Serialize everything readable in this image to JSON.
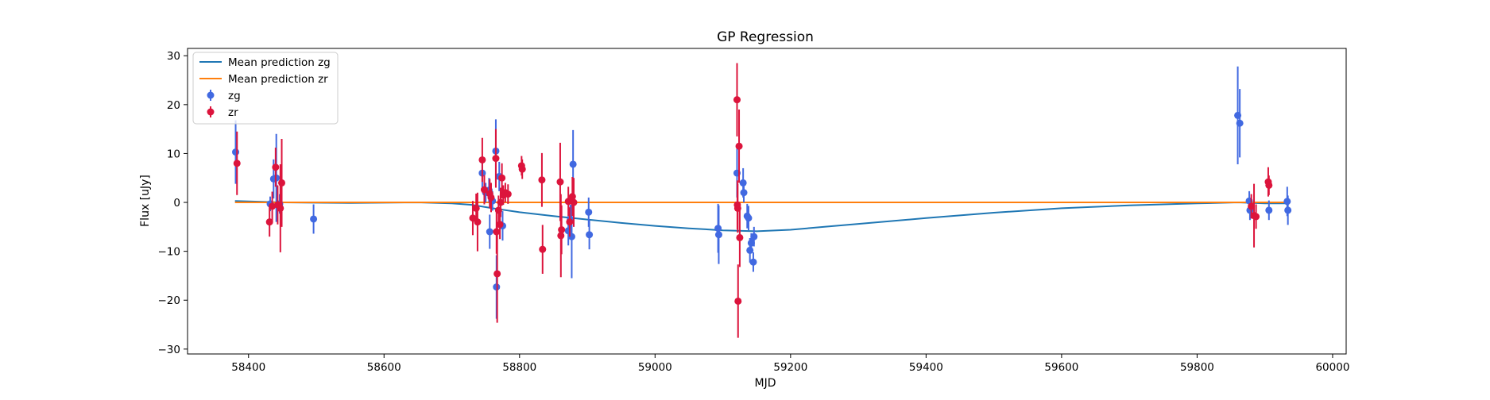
{
  "chart_data": {
    "type": "scatter",
    "title": "GP Regression",
    "xlabel": "MJD",
    "ylabel": "Flux [uJy]",
    "xlim": [
      58310,
      60020
    ],
    "ylim": [
      -31,
      31.5
    ],
    "xticks": [
      58400,
      58600,
      58800,
      59000,
      59200,
      59400,
      59600,
      59800,
      60000
    ],
    "yticks": [
      -30,
      -20,
      -10,
      0,
      10,
      20,
      30
    ],
    "grid": false,
    "legend_position": "top-left",
    "colors": {
      "zg": "#4169E1",
      "zr": "#DC143C",
      "mean_zg": "#1f77b4",
      "mean_zr": "#ff7f0e"
    },
    "legend": [
      {
        "label": "Mean prediction zg",
        "kind": "line",
        "color": "#1f77b4"
      },
      {
        "label": "Mean prediction zr",
        "kind": "line",
        "color": "#ff7f0e"
      },
      {
        "label": "zg",
        "kind": "errorbar",
        "color": "#4169E1"
      },
      {
        "label": "zr",
        "kind": "errorbar",
        "color": "#DC143C"
      }
    ],
    "lines": [
      {
        "name": "Mean prediction zg",
        "color": "#1f77b4",
        "x": [
          58380,
          58450,
          58550,
          58650,
          58700,
          58730,
          58760,
          58800,
          58850,
          58900,
          58950,
          59000,
          59050,
          59100,
          59150,
          59200,
          59250,
          59300,
          59400,
          59500,
          59600,
          59700,
          59800,
          59860,
          59900,
          59935
        ],
        "y": [
          0.3,
          0.0,
          -0.1,
          0.0,
          -0.2,
          -0.5,
          -1.2,
          -2.0,
          -2.8,
          -3.5,
          -4.2,
          -4.8,
          -5.3,
          -5.7,
          -5.9,
          -5.6,
          -5.0,
          -4.4,
          -3.2,
          -2.1,
          -1.2,
          -0.6,
          -0.2,
          0.0,
          -0.2,
          -0.2
        ]
      },
      {
        "name": "Mean prediction zr",
        "color": "#ff7f0e",
        "x": [
          58380,
          58600,
          58800,
          59000,
          59200,
          59400,
          59600,
          59800,
          59935
        ],
        "y": [
          0.0,
          0.0,
          0.0,
          0.0,
          0.0,
          0.0,
          0.0,
          0.0,
          0.0
        ]
      }
    ],
    "series": [
      {
        "name": "zg",
        "color": "#4169E1",
        "points": [
          {
            "x": 58381,
            "y": 10.3,
            "err": 6.5
          },
          {
            "x": 58432,
            "y": -0.3,
            "err": 1.5
          },
          {
            "x": 58437,
            "y": 4.8,
            "err": 4.0
          },
          {
            "x": 58441,
            "y": 5.0,
            "err": 9.0
          },
          {
            "x": 58446,
            "y": -0.3,
            "err": 2.0
          },
          {
            "x": 58496,
            "y": -3.4,
            "err": 3.0
          },
          {
            "x": 58745,
            "y": 6.0,
            "err": 3.0
          },
          {
            "x": 58750,
            "y": 2.0,
            "err": 2.0
          },
          {
            "x": 58755,
            "y": 2.5,
            "err": 2.5
          },
          {
            "x": 58756,
            "y": -6.0,
            "err": 3.5
          },
          {
            "x": 58760,
            "y": 0.3,
            "err": 2.0
          },
          {
            "x": 58765,
            "y": 10.5,
            "err": 6.5
          },
          {
            "x": 58766,
            "y": -17.3,
            "err": 6.5
          },
          {
            "x": 58770,
            "y": 5.3,
            "err": 3.0
          },
          {
            "x": 58775,
            "y": -4.8,
            "err": 3.0
          },
          {
            "x": 58872,
            "y": -5.8,
            "err": 3.0
          },
          {
            "x": 58875,
            "y": -3.5,
            "err": 3.0
          },
          {
            "x": 58877,
            "y": -7.0,
            "err": 8.5
          },
          {
            "x": 58879,
            "y": 7.8,
            "err": 7.0
          },
          {
            "x": 58902,
            "y": -2.0,
            "err": 3.0
          },
          {
            "x": 58903,
            "y": -6.6,
            "err": 3.0
          },
          {
            "x": 59093,
            "y": -5.3,
            "err": 5.0
          },
          {
            "x": 59094,
            "y": -6.6,
            "err": 6.0
          },
          {
            "x": 59121,
            "y": 6.0,
            "err": 5.0
          },
          {
            "x": 59130,
            "y": 4.0,
            "err": 3.0
          },
          {
            "x": 59131,
            "y": 2.0,
            "err": 2.0
          },
          {
            "x": 59136,
            "y": -2.8,
            "err": 2.5
          },
          {
            "x": 59138,
            "y": -3.2,
            "err": 2.5
          },
          {
            "x": 59140,
            "y": -9.8,
            "err": 2.5
          },
          {
            "x": 59142,
            "y": -8.3,
            "err": 2.0
          },
          {
            "x": 59145,
            "y": -12.2,
            "err": 2.0
          },
          {
            "x": 59146,
            "y": -7.0,
            "err": 2.0
          },
          {
            "x": 59860,
            "y": 17.8,
            "err": 10.0
          },
          {
            "x": 59863,
            "y": 16.2,
            "err": 7.0
          },
          {
            "x": 59877,
            "y": 0.3,
            "err": 2.0
          },
          {
            "x": 59878,
            "y": -1.6,
            "err": 2.0
          },
          {
            "x": 59906,
            "y": -1.6,
            "err": 2.0
          },
          {
            "x": 59933,
            "y": 0.2,
            "err": 3.0
          },
          {
            "x": 59934,
            "y": -1.6,
            "err": 3.0
          }
        ]
      },
      {
        "name": "zr",
        "color": "#DC143C",
        "points": [
          {
            "x": 58383,
            "y": 8.0,
            "err": 6.5
          },
          {
            "x": 58431,
            "y": -4.0,
            "err": 3.0
          },
          {
            "x": 58435,
            "y": -0.8,
            "err": 3.0
          },
          {
            "x": 58440,
            "y": 7.2,
            "err": 4.0
          },
          {
            "x": 58443,
            "y": -0.5,
            "err": 4.0
          },
          {
            "x": 58447,
            "y": -1.2,
            "err": 9.0
          },
          {
            "x": 58449,
            "y": 4.0,
            "err": 9.0
          },
          {
            "x": 58731,
            "y": -3.2,
            "err": 3.5
          },
          {
            "x": 58736,
            "y": -1.2,
            "err": 3.0
          },
          {
            "x": 58738,
            "y": -4.0,
            "err": 6.0
          },
          {
            "x": 58745,
            "y": 8.7,
            "err": 4.5
          },
          {
            "x": 58748,
            "y": 2.6,
            "err": 3.0
          },
          {
            "x": 58756,
            "y": 1.8,
            "err": 3.0
          },
          {
            "x": 58758,
            "y": 1.0,
            "err": 3.0
          },
          {
            "x": 58765,
            "y": 9.0,
            "err": 6.0
          },
          {
            "x": 58766,
            "y": -6.0,
            "err": 4.5
          },
          {
            "x": 58767,
            "y": -14.6,
            "err": 10.0
          },
          {
            "x": 58769,
            "y": -1.6,
            "err": 3.0
          },
          {
            "x": 58771,
            "y": -4.5,
            "err": 3.0
          },
          {
            "x": 58772,
            "y": 0.0,
            "err": 3.0
          },
          {
            "x": 58774,
            "y": 5.0,
            "err": 3.0
          },
          {
            "x": 58776,
            "y": 1.5,
            "err": 2.0
          },
          {
            "x": 58779,
            "y": 2.0,
            "err": 2.0
          },
          {
            "x": 58783,
            "y": 1.7,
            "err": 2.0
          },
          {
            "x": 58803,
            "y": 7.5,
            "err": 2.0
          },
          {
            "x": 58804,
            "y": 6.8,
            "err": 2.0
          },
          {
            "x": 58833,
            "y": 4.6,
            "err": 5.5
          },
          {
            "x": 58834,
            "y": -9.6,
            "err": 5.0
          },
          {
            "x": 58860,
            "y": 4.2,
            "err": 8.0
          },
          {
            "x": 58861,
            "y": -6.8,
            "err": 8.5
          },
          {
            "x": 58862,
            "y": -5.6,
            "err": 5.0
          },
          {
            "x": 58872,
            "y": 0.2,
            "err": 3.0
          },
          {
            "x": 58874,
            "y": -4.0,
            "err": 3.0
          },
          {
            "x": 58878,
            "y": 1.2,
            "err": 4.0
          },
          {
            "x": 58880,
            "y": 0.0,
            "err": 5.0
          },
          {
            "x": 59121,
            "y": 21.0,
            "err": 7.5
          },
          {
            "x": 59121.5,
            "y": -0.5,
            "err": 5.0
          },
          {
            "x": 59122,
            "y": -1.2,
            "err": 5.0
          },
          {
            "x": 59122.5,
            "y": -20.2,
            "err": 7.5
          },
          {
            "x": 59124,
            "y": 11.5,
            "err": 7.5
          },
          {
            "x": 59125,
            "y": -7.2,
            "err": 6.0
          },
          {
            "x": 59880,
            "y": -0.8,
            "err": 2.5
          },
          {
            "x": 59884,
            "y": -2.7,
            "err": 6.5
          },
          {
            "x": 59887,
            "y": -2.9,
            "err": 2.5
          },
          {
            "x": 59905,
            "y": 4.2,
            "err": 3.0
          },
          {
            "x": 59906,
            "y": 3.5,
            "err": 2.0
          }
        ]
      }
    ]
  }
}
